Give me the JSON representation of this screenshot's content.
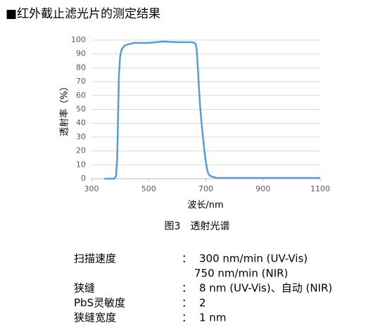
{
  "header": {
    "title": "■红外截止滤光片的测定结果"
  },
  "chart_data": {
    "type": "line",
    "x_label": "波长/nm",
    "y_label": "透射率（%）",
    "x": [
      345,
      380,
      386,
      390,
      393,
      396,
      400,
      405,
      415,
      430,
      450,
      500,
      550,
      600,
      650,
      660,
      665,
      668,
      672,
      676,
      680,
      685,
      690,
      695,
      700,
      705,
      710,
      720,
      740,
      800,
      900,
      1000,
      1100
    ],
    "series": [
      {
        "color": "#5b9bd5",
        "values": [
          0,
          0,
          2,
          15,
          45,
          75,
          88,
          93,
          96,
          97,
          98,
          98,
          99,
          98.5,
          98.5,
          98,
          97,
          93,
          80,
          65,
          52,
          40,
          30,
          20,
          12,
          6,
          3,
          1.5,
          0.5,
          0.5,
          0.5,
          0.5,
          0.5
        ]
      }
    ],
    "xlim": [
      300,
      1100
    ],
    "xticks": [
      300,
      500,
      700,
      900,
      1100
    ],
    "ylim": [
      0,
      100
    ],
    "yticks": [
      0,
      10,
      20,
      30,
      40,
      50,
      60,
      70,
      80,
      90,
      100
    ],
    "grid": true
  },
  "caption": "图3　透射光谱",
  "specs": {
    "separator": "：",
    "rows": [
      {
        "label": "扫描速度",
        "values": [
          "300 nm/min (UV-Vis)",
          "750 nm/min (NIR)"
        ]
      },
      {
        "label": "狭缝",
        "values": [
          "8 nm (UV-Vis)、自动 (NIR)"
        ]
      },
      {
        "label": "PbS灵敏度",
        "values": [
          "2"
        ]
      },
      {
        "label": "狭缝宽度",
        "values": [
          "1 nm"
        ]
      }
    ]
  }
}
